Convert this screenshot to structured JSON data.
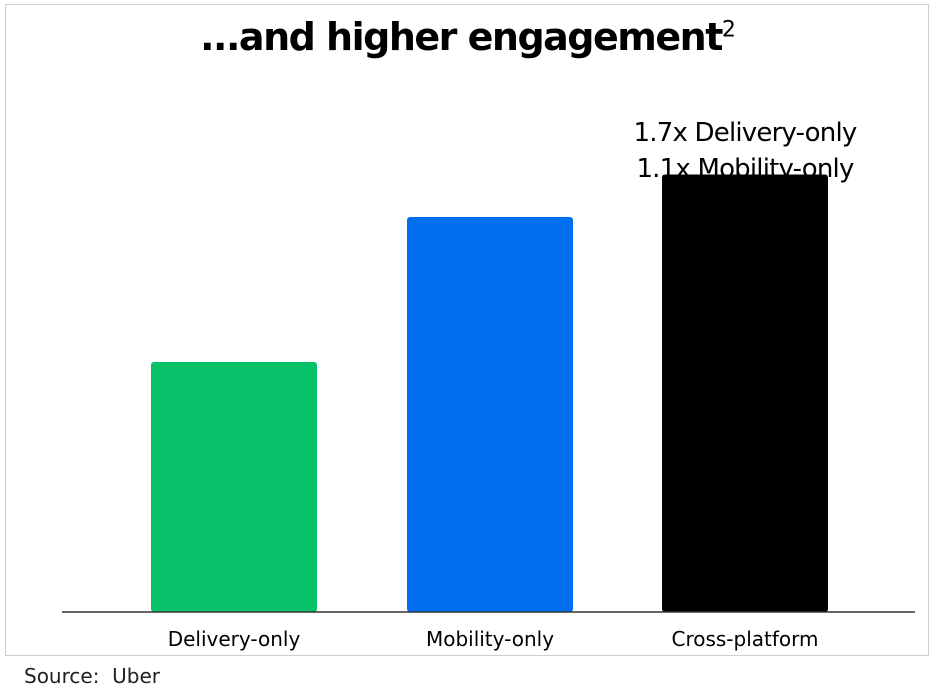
{
  "chart_data": {
    "type": "bar",
    "title": "...and higher engagement",
    "title_superscript": "2",
    "categories": [
      "Delivery-only",
      "Mobility-only",
      "Cross-platform"
    ],
    "values": [
      1.0,
      1.58,
      1.75
    ],
    "colors": [
      "#06C167",
      "#0070F0",
      "#000000"
    ],
    "ylim": [
      0,
      2
    ],
    "grid": false,
    "annotation": {
      "lines": [
        "1.7x Delivery-only",
        "1.1x Mobility-only"
      ],
      "category": "Cross-platform"
    }
  },
  "source": {
    "label": "Source:",
    "value": "Uber"
  }
}
